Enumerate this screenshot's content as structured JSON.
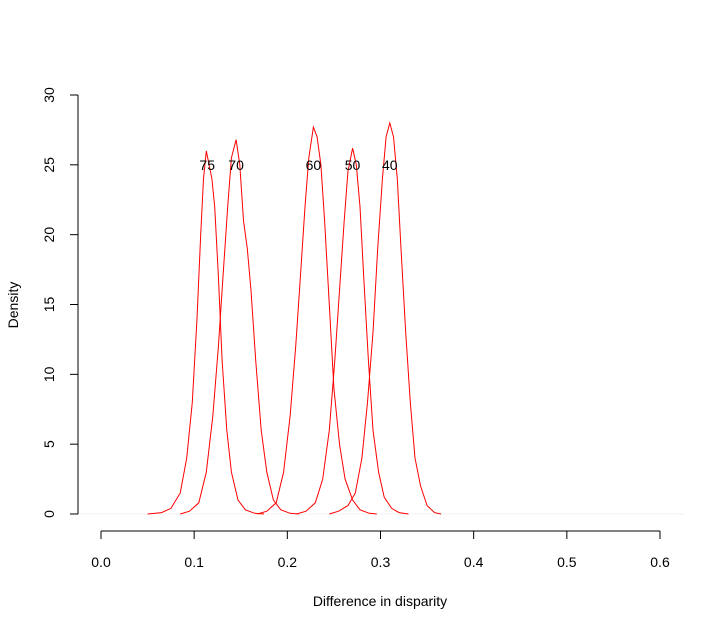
{
  "chart_data": {
    "type": "line",
    "title": "",
    "xlabel": "Difference in disparity",
    "ylabel": "Density",
    "xlim": [
      0.0,
      0.6
    ],
    "ylim": [
      0,
      30
    ],
    "x_ticks": [
      "0.0",
      "0.1",
      "0.2",
      "0.3",
      "0.4",
      "0.5",
      "0.6"
    ],
    "y_ticks": [
      "0",
      "5",
      "10",
      "15",
      "20",
      "25",
      "30"
    ],
    "grid": false,
    "legend": "none",
    "line_color": "#ff0000",
    "series": [
      {
        "label": "75",
        "label_x": 0.114,
        "label_y": 25,
        "points": [
          [
            0.05,
            0
          ],
          [
            0.065,
            0.1
          ],
          [
            0.075,
            0.4
          ],
          [
            0.085,
            1.5
          ],
          [
            0.092,
            4
          ],
          [
            0.098,
            8
          ],
          [
            0.103,
            14
          ],
          [
            0.107,
            20
          ],
          [
            0.11,
            24
          ],
          [
            0.113,
            26
          ],
          [
            0.116,
            25
          ],
          [
            0.119,
            24
          ],
          [
            0.122,
            22
          ],
          [
            0.126,
            17
          ],
          [
            0.13,
            11
          ],
          [
            0.135,
            6
          ],
          [
            0.14,
            3
          ],
          [
            0.147,
            1
          ],
          [
            0.155,
            0.3
          ],
          [
            0.165,
            0.05
          ],
          [
            0.175,
            0
          ]
        ]
      },
      {
        "label": "70",
        "label_x": 0.145,
        "label_y": 25,
        "points": [
          [
            0.085,
            0
          ],
          [
            0.095,
            0.2
          ],
          [
            0.105,
            0.8
          ],
          [
            0.113,
            3
          ],
          [
            0.12,
            7
          ],
          [
            0.126,
            12
          ],
          [
            0.131,
            17
          ],
          [
            0.136,
            22
          ],
          [
            0.14,
            25.5
          ],
          [
            0.145,
            26.8
          ],
          [
            0.149,
            25
          ],
          [
            0.153,
            21
          ],
          [
            0.157,
            19
          ],
          [
            0.161,
            16
          ],
          [
            0.166,
            11
          ],
          [
            0.172,
            6
          ],
          [
            0.178,
            3
          ],
          [
            0.185,
            1
          ],
          [
            0.193,
            0.3
          ],
          [
            0.203,
            0.05
          ],
          [
            0.212,
            0
          ]
        ]
      },
      {
        "label": "60",
        "label_x": 0.228,
        "label_y": 25,
        "points": [
          [
            0.168,
            0
          ],
          [
            0.178,
            0.2
          ],
          [
            0.188,
            0.8
          ],
          [
            0.196,
            3
          ],
          [
            0.203,
            7
          ],
          [
            0.209,
            12
          ],
          [
            0.214,
            17
          ],
          [
            0.219,
            22
          ],
          [
            0.223,
            25.5
          ],
          [
            0.228,
            27.7
          ],
          [
            0.232,
            27
          ],
          [
            0.236,
            25
          ],
          [
            0.24,
            21
          ],
          [
            0.245,
            15
          ],
          [
            0.25,
            9
          ],
          [
            0.256,
            5
          ],
          [
            0.262,
            2.5
          ],
          [
            0.27,
            1
          ],
          [
            0.278,
            0.3
          ],
          [
            0.288,
            0.05
          ],
          [
            0.296,
            0
          ]
        ]
      },
      {
        "label": "50",
        "label_x": 0.27,
        "label_y": 25,
        "points": [
          [
            0.21,
            0
          ],
          [
            0.22,
            0.2
          ],
          [
            0.23,
            0.8
          ],
          [
            0.238,
            2.5
          ],
          [
            0.245,
            6
          ],
          [
            0.251,
            11
          ],
          [
            0.256,
            16
          ],
          [
            0.261,
            21
          ],
          [
            0.265,
            24.5
          ],
          [
            0.27,
            26.2
          ],
          [
            0.274,
            25
          ],
          [
            0.278,
            22
          ],
          [
            0.282,
            17
          ],
          [
            0.287,
            11
          ],
          [
            0.292,
            6
          ],
          [
            0.298,
            3
          ],
          [
            0.304,
            1.2
          ],
          [
            0.312,
            0.4
          ],
          [
            0.32,
            0.1
          ],
          [
            0.33,
            0
          ]
        ]
      },
      {
        "label": "40",
        "label_x": 0.31,
        "label_y": 25,
        "points": [
          [
            0.245,
            0
          ],
          [
            0.255,
            0.2
          ],
          [
            0.265,
            0.6
          ],
          [
            0.273,
            1.5
          ],
          [
            0.28,
            4
          ],
          [
            0.286,
            8
          ],
          [
            0.292,
            13
          ],
          [
            0.297,
            19
          ],
          [
            0.302,
            24
          ],
          [
            0.306,
            27
          ],
          [
            0.31,
            28
          ],
          [
            0.314,
            27
          ],
          [
            0.318,
            24
          ],
          [
            0.322,
            19
          ],
          [
            0.327,
            13
          ],
          [
            0.332,
            8
          ],
          [
            0.337,
            4
          ],
          [
            0.343,
            2
          ],
          [
            0.35,
            0.6
          ],
          [
            0.358,
            0.1
          ],
          [
            0.365,
            0
          ]
        ]
      }
    ]
  }
}
